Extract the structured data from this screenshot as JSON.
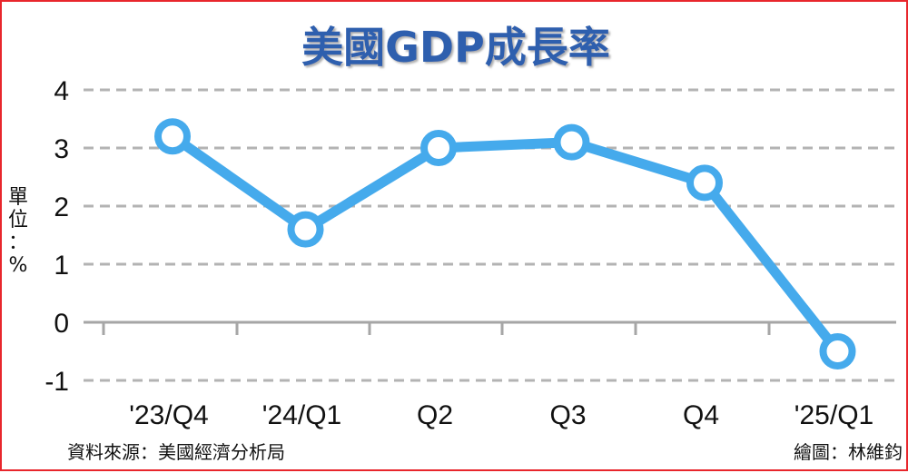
{
  "chart_data": {
    "type": "line",
    "title": "美國GDP成長率",
    "ylabel": "單位：%",
    "xlabel": "",
    "categories": [
      "'23/Q4",
      "'24/Q1",
      "Q2",
      "Q3",
      "Q4",
      "'25/Q1"
    ],
    "series": [
      {
        "values": [
          3.2,
          1.6,
          3.0,
          3.1,
          2.4,
          -0.5
        ]
      }
    ],
    "ylim": [
      -1,
      4
    ],
    "yticks": [
      "4",
      "3",
      "2",
      "1",
      "0",
      "-1"
    ],
    "grid": true,
    "line_color": "#45aaec"
  },
  "footer": {
    "source": "資料來源：美國經濟分析局",
    "credit": "繪圖：林維鈞"
  }
}
